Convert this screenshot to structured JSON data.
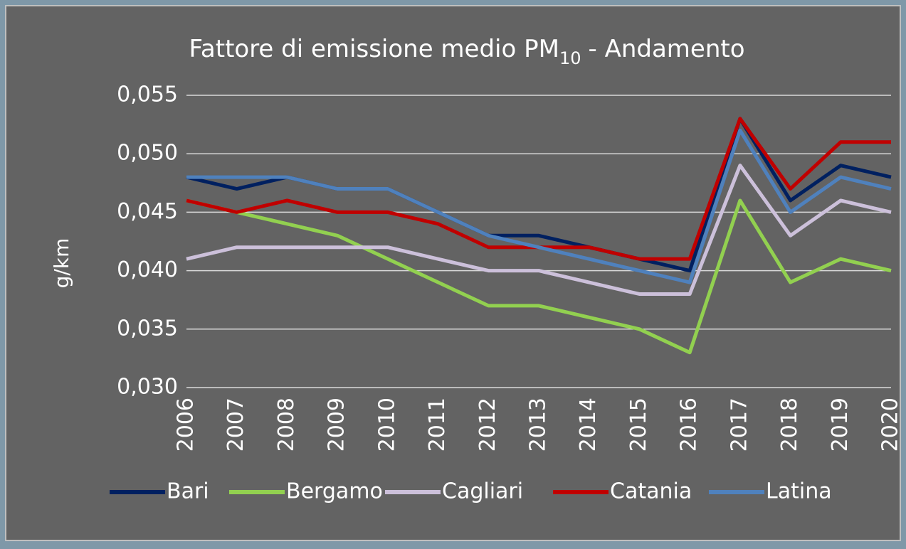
{
  "chart_data": {
    "type": "line",
    "title": "Fattore di emissione medio PM",
    "title_subscript": "10",
    "title_suffix": "- Andamento",
    "y_label": "g/km",
    "categories": [
      "2006",
      "2007",
      "2008",
      "2009",
      "2010",
      "2011",
      "2012",
      "2013",
      "2014",
      "2015",
      "2016",
      "2017",
      "2018",
      "2019",
      "2020"
    ],
    "series": [
      {
        "name": "Bari",
        "color": "#002060",
        "values": [
          0.048,
          0.047,
          0.048,
          0.047,
          0.047,
          0.045,
          0.043,
          0.043,
          0.042,
          0.041,
          0.04,
          0.053,
          0.046,
          0.049,
          0.048
        ]
      },
      {
        "name": "Bergamo",
        "color": "#92d050",
        "values": [
          0.046,
          0.045,
          0.044,
          0.043,
          0.041,
          0.039,
          0.037,
          0.037,
          0.036,
          0.035,
          0.033,
          0.046,
          0.039,
          0.041,
          0.04
        ]
      },
      {
        "name": "Cagliari",
        "color": "#ccc0da",
        "values": [
          0.041,
          0.042,
          0.042,
          0.042,
          0.042,
          0.041,
          0.04,
          0.04,
          0.039,
          0.038,
          0.038,
          0.049,
          0.043,
          0.046,
          0.045
        ]
      },
      {
        "name": "Catania",
        "color": "#c00000",
        "values": [
          0.046,
          0.045,
          0.046,
          0.045,
          0.045,
          0.044,
          0.042,
          0.042,
          0.042,
          0.041,
          0.041,
          0.053,
          0.047,
          0.051,
          0.051
        ]
      },
      {
        "name": "Latina",
        "color": "#4f81bd",
        "values": [
          0.048,
          0.048,
          0.048,
          0.047,
          0.047,
          0.045,
          0.043,
          0.042,
          0.041,
          0.04,
          0.039,
          0.052,
          0.045,
          0.048,
          0.047
        ]
      }
    ],
    "ylim": [
      0.03,
      0.055
    ],
    "yticks": [
      {
        "value": 0.03,
        "label": "0,030"
      },
      {
        "value": 0.035,
        "label": "0,035"
      },
      {
        "value": 0.04,
        "label": "0,040"
      },
      {
        "value": 0.045,
        "label": "0,045"
      },
      {
        "value": 0.05,
        "label": "0,050"
      },
      {
        "value": 0.055,
        "label": "0,055"
      }
    ],
    "grid": true,
    "legend": "bottom"
  }
}
